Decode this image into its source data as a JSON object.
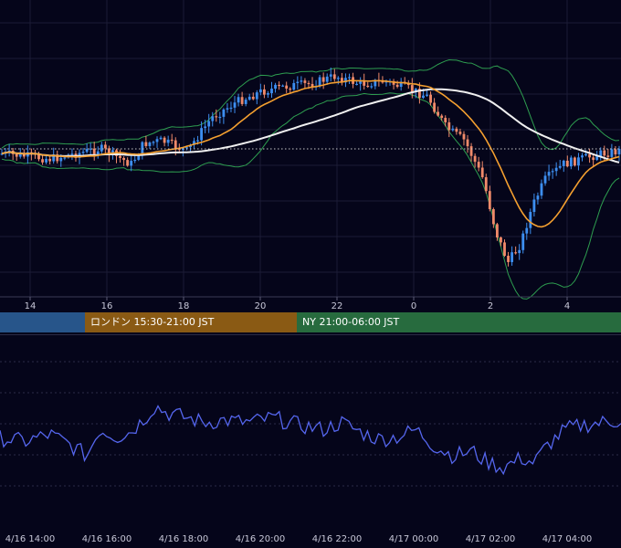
{
  "colors": {
    "background": "#05051a",
    "grid": "#1c1c36",
    "candle_up": "#3d8ef0",
    "candle_down": "#f08a6a",
    "ma_fast": "#f5a030",
    "ma_slow": "#f0f0f0",
    "bollinger": "#2e9e50",
    "oscillator": "#5566ee",
    "current_price_line": "#c8c8c8"
  },
  "sessions": [
    {
      "label": "",
      "color": "#27558a"
    },
    {
      "label": "ロンドン 15:30-21:00 JST",
      "color": "#8a5a14"
    },
    {
      "label": "NY 21:00-06:00 JST",
      "color": "#276b3e"
    }
  ],
  "chart_data": [
    {
      "type": "candlestick",
      "x_ticks": [
        "14",
        "16",
        "18",
        "20",
        "22",
        "0",
        "2",
        "4"
      ],
      "indicators": [
        "moving average (fast)",
        "moving average (slow)",
        "bollinger bands"
      ],
      "grid": true,
      "current_price_line": "dotted",
      "price_path": [
        [
          0,
          50
        ],
        [
          8,
          48
        ],
        [
          16,
          52
        ],
        [
          21,
          46
        ],
        [
          23,
          54
        ],
        [
          26,
          55
        ],
        [
          30,
          51
        ],
        [
          34,
          64
        ],
        [
          38,
          70
        ],
        [
          42,
          74
        ],
        [
          46,
          76
        ],
        [
          50,
          77
        ],
        [
          54,
          80
        ],
        [
          58,
          77
        ],
        [
          62,
          78
        ],
        [
          66,
          75
        ],
        [
          69,
          72
        ],
        [
          72,
          60
        ],
        [
          75,
          55
        ],
        [
          78,
          40
        ],
        [
          80,
          20
        ],
        [
          82,
          8
        ],
        [
          84,
          15
        ],
        [
          86,
          30
        ],
        [
          88,
          40
        ],
        [
          91,
          46
        ],
        [
          94,
          48
        ],
        [
          97,
          50
        ],
        [
          100,
          51
        ]
      ]
    },
    {
      "type": "line",
      "x_ticks": [
        "4/16 14:00",
        "4/16 16:00",
        "4/16 18:00",
        "4/16 20:00",
        "4/16 22:00",
        "4/17 00:00",
        "4/17 02:00",
        "4/17 04:00"
      ],
      "grid": true,
      "path": [
        [
          0,
          45
        ],
        [
          4,
          42
        ],
        [
          8,
          48
        ],
        [
          11,
          40
        ],
        [
          14,
          30
        ],
        [
          16,
          52
        ],
        [
          19,
          46
        ],
        [
          21,
          50
        ],
        [
          23,
          60
        ],
        [
          25,
          72
        ],
        [
          27,
          66
        ],
        [
          30,
          62
        ],
        [
          33,
          58
        ],
        [
          36,
          60
        ],
        [
          40,
          58
        ],
        [
          44,
          62
        ],
        [
          48,
          56
        ],
        [
          52,
          52
        ],
        [
          55,
          58
        ],
        [
          58,
          50
        ],
        [
          61,
          44
        ],
        [
          64,
          46
        ],
        [
          67,
          52
        ],
        [
          70,
          38
        ],
        [
          73,
          30
        ],
        [
          76,
          34
        ],
        [
          78,
          26
        ],
        [
          81,
          20
        ],
        [
          84,
          28
        ],
        [
          86,
          24
        ],
        [
          88,
          38
        ],
        [
          91,
          52
        ],
        [
          94,
          56
        ],
        [
          97,
          58
        ],
        [
          100,
          60
        ]
      ]
    }
  ]
}
